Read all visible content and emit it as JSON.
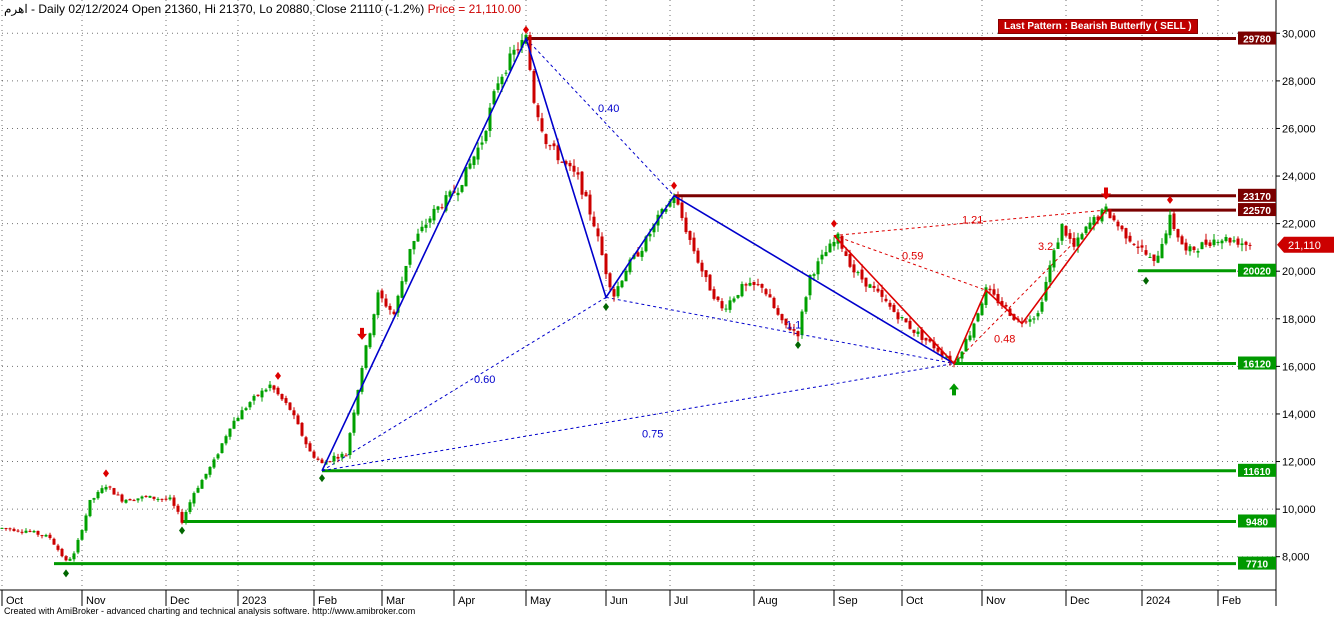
{
  "header": {
    "symbol": "اهرم",
    "info": " - Daily 02/12/2024 Open 21360, Hi 21370, Lo 20880, Close 21110 (-1.2%)",
    "price_label": "Price = 21,110.00"
  },
  "pattern_label": "Last Pattern : Bearish Butterfly ( SELL )",
  "footer": "Created with AmiBroker - advanced charting and technical analysis software. http://www.amibroker.com",
  "colors": {
    "up_candle": "#00a000",
    "down_candle": "#cc0000",
    "wave_blue": "#0000cc",
    "wave_red": "#dd0000",
    "support": "#009900",
    "resistance": "#7a0000",
    "current_price_tag": "#cc0000"
  },
  "chart_data": {
    "type": "candlestick",
    "y_axis": {
      "range": [
        6600,
        31400
      ],
      "ticks": [
        8000,
        10000,
        12000,
        14000,
        16000,
        18000,
        20000,
        22000,
        24000,
        26000,
        28000,
        30000
      ],
      "tick_labels": [
        "8,000",
        "10,000",
        "12,000",
        "14,000",
        "16,000",
        "18,000",
        "20,000",
        "22,000",
        "24,000",
        "26,000",
        "28,000",
        "30,000"
      ],
      "position": "right"
    },
    "x_axis": {
      "labels": [
        "Oct",
        "Nov",
        "Dec",
        "2023",
        "Feb",
        "Mar",
        "Apr",
        "May",
        "Jun",
        "Jul",
        "Aug",
        "Sep",
        "Oct",
        "Nov",
        "Dec",
        "2024",
        "Feb"
      ],
      "positions": [
        0,
        20,
        41,
        59,
        78,
        95,
        113,
        131,
        151,
        167,
        188,
        208,
        225,
        245,
        266,
        285,
        304
      ]
    },
    "x_range": [
      0,
      318
    ],
    "price_path": [
      [
        0,
        9200
      ],
      [
        6,
        9100
      ],
      [
        12,
        8800
      ],
      [
        16,
        7800
      ],
      [
        18,
        8100
      ],
      [
        22,
        10300
      ],
      [
        26,
        11000
      ],
      [
        30,
        10400
      ],
      [
        36,
        10500
      ],
      [
        42,
        10400
      ],
      [
        45,
        9500
      ],
      [
        48,
        10700
      ],
      [
        53,
        12000
      ],
      [
        57,
        13500
      ],
      [
        62,
        14500
      ],
      [
        67,
        15200
      ],
      [
        72,
        14200
      ],
      [
        77,
        12400
      ],
      [
        80,
        11900
      ],
      [
        83,
        12200
      ],
      [
        86,
        12300
      ],
      [
        90,
        16000
      ],
      [
        94,
        19000
      ],
      [
        98,
        18200
      ],
      [
        102,
        21000
      ],
      [
        108,
        22500
      ],
      [
        114,
        23500
      ],
      [
        120,
        25500
      ],
      [
        124,
        28000
      ],
      [
        128,
        29200
      ],
      [
        131,
        29780
      ],
      [
        133,
        27200
      ],
      [
        136,
        25500
      ],
      [
        140,
        24600
      ],
      [
        144,
        23900
      ],
      [
        148,
        22000
      ],
      [
        151,
        20000
      ],
      [
        153,
        19000
      ],
      [
        156,
        20100
      ],
      [
        160,
        21000
      ],
      [
        164,
        22200
      ],
      [
        168,
        23170
      ],
      [
        172,
        21300
      ],
      [
        176,
        19600
      ],
      [
        180,
        18400
      ],
      [
        185,
        19300
      ],
      [
        190,
        19400
      ],
      [
        195,
        17800
      ],
      [
        199,
        17400
      ],
      [
        202,
        19800
      ],
      [
        206,
        20800
      ],
      [
        209,
        21400
      ],
      [
        213,
        20000
      ],
      [
        218,
        19200
      ],
      [
        223,
        18300
      ],
      [
        228,
        17500
      ],
      [
        234,
        16700
      ],
      [
        238,
        16120
      ],
      [
        242,
        17400
      ],
      [
        246,
        19200
      ],
      [
        250,
        18600
      ],
      [
        254,
        17900
      ],
      [
        259,
        18200
      ],
      [
        262,
        20200
      ],
      [
        265,
        21900
      ],
      [
        268,
        21000
      ],
      [
        272,
        22000
      ],
      [
        276,
        22570
      ],
      [
        280,
        21700
      ],
      [
        285,
        20900
      ],
      [
        288,
        20300
      ],
      [
        292,
        22200
      ],
      [
        296,
        20800
      ],
      [
        300,
        21100
      ],
      [
        304,
        21400
      ],
      [
        308,
        21300
      ],
      [
        312,
        21110
      ]
    ],
    "waves": [
      {
        "style": "solid",
        "color": "blue",
        "points": [
          [
            80,
            11610
          ],
          [
            131,
            29780
          ],
          [
            151,
            18900
          ],
          [
            168,
            23170
          ],
          [
            238,
            16120
          ]
        ]
      },
      {
        "style": "solid",
        "color": "red",
        "points": [
          [
            208,
            21500
          ],
          [
            238,
            16120
          ],
          [
            246,
            19200
          ],
          [
            255,
            17800
          ],
          [
            276,
            22570
          ]
        ]
      }
    ],
    "ratio_lines": [
      {
        "style": "dashed",
        "color": "blue",
        "points": [
          [
            131,
            29780
          ],
          [
            168,
            23170
          ]
        ]
      },
      {
        "style": "dashed",
        "color": "blue",
        "points": [
          [
            80,
            11610
          ],
          [
            151,
            18900
          ]
        ]
      },
      {
        "style": "dashed",
        "color": "blue",
        "points": [
          [
            80,
            11610
          ],
          [
            238,
            16120
          ]
        ]
      },
      {
        "style": "dashed",
        "color": "blue",
        "points": [
          [
            151,
            18900
          ],
          [
            238,
            16120
          ]
        ]
      },
      {
        "style": "dashed",
        "color": "red",
        "points": [
          [
            208,
            21500
          ],
          [
            276,
            22570
          ]
        ]
      },
      {
        "style": "dashed",
        "color": "red",
        "points": [
          [
            208,
            21500
          ],
          [
            246,
            19200
          ]
        ]
      },
      {
        "style": "dashed",
        "color": "red",
        "points": [
          [
            238,
            16120
          ],
          [
            276,
            22570
          ]
        ]
      }
    ],
    "annotations": [
      {
        "text": "0.40",
        "x": 149,
        "y": 26700,
        "color": "blue"
      },
      {
        "text": "0.60",
        "x": 118,
        "y": 15300,
        "color": "blue"
      },
      {
        "text": "0.75",
        "x": 160,
        "y": 13000,
        "color": "blue"
      },
      {
        "text": "1.21",
        "x": 240,
        "y": 22000,
        "color": "red"
      },
      {
        "text": "0.59",
        "x": 225,
        "y": 20500,
        "color": "red"
      },
      {
        "text": "3.2",
        "x": 259,
        "y": 20900,
        "color": "red"
      },
      {
        "text": "0.48",
        "x": 248,
        "y": 17000,
        "color": "red"
      },
      {
        "text": "1.1",
        "x": 196,
        "y": 17600,
        "color": "blue"
      }
    ],
    "horizontal_levels": [
      {
        "value": 29780,
        "label": "29780",
        "color": "resistance",
        "x_start": 131
      },
      {
        "value": 23170,
        "label": "23170",
        "color": "resistance",
        "x_start": 168
      },
      {
        "value": 22570,
        "label": "22570",
        "color": "resistance",
        "x_start": 276
      },
      {
        "value": 20020,
        "label": "20020",
        "color": "support",
        "x_start": 284
      },
      {
        "value": 16120,
        "label": "16120",
        "color": "support",
        "x_start": 238
      },
      {
        "value": 11610,
        "label": "11610",
        "color": "support",
        "x_start": 80
      },
      {
        "value": 9480,
        "label": "9480",
        "color": "support",
        "x_start": 45
      },
      {
        "value": 7710,
        "label": "7710",
        "color": "support",
        "x_start": 13
      }
    ],
    "current_price": {
      "value": 21110,
      "label": "21,110"
    },
    "pivot_highs": [
      [
        26,
        11500
      ],
      [
        69,
        15600
      ],
      [
        131,
        30150
      ],
      [
        168,
        23600
      ],
      [
        208,
        22000
      ],
      [
        292,
        23000
      ]
    ],
    "pivot_lows": [
      [
        16,
        7300
      ],
      [
        45,
        9100
      ],
      [
        80,
        11300
      ],
      [
        151,
        18500
      ],
      [
        199,
        16900
      ],
      [
        286,
        19600
      ]
    ],
    "arrows": [
      {
        "type": "down",
        "x": 90,
        "value": 17200
      },
      {
        "type": "down",
        "x": 276,
        "value": 23100
      },
      {
        "type": "up",
        "x": 238,
        "value": 15200
      }
    ]
  }
}
